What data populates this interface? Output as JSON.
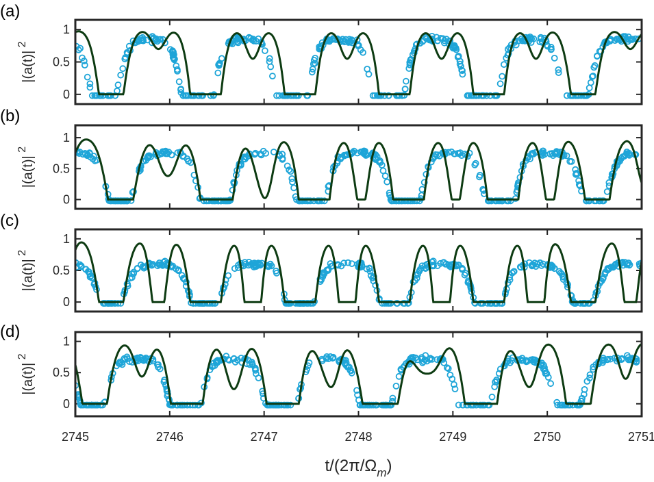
{
  "chart_data": [
    {
      "type": "scatter",
      "panel_label": "(a)",
      "ylabel": "|(a(t)|",
      "ylabel_sup": "2",
      "xlim": [
        2745,
        2751
      ],
      "ylim": [
        -0.15,
        1.15
      ],
      "yticks": [
        0,
        0.5,
        1
      ],
      "ytick_labels": [
        "0",
        "0.5",
        "1"
      ],
      "xticks": [
        2745,
        2746,
        2747,
        2748,
        2749,
        2750,
        2751
      ],
      "grid": false,
      "series": [
        {
          "kind": "markers",
          "marker": "circle-open",
          "color": "#1ea5d8"
        },
        {
          "kind": "line",
          "color": "#0d3b12"
        }
      ],
      "model": {
        "min_times": [
          2745.38,
          2746.38,
          2747.38,
          2748.38,
          2749.38,
          2750.38
        ],
        "mid_dip": 0.85
      },
      "data_points": {
        "dip_times": [
          2745.33,
          2746.28,
          2747.28,
          2748.33,
          2749.33,
          2750.28
        ],
        "dip_min": 0.08,
        "plateau": 0.85
      }
    },
    {
      "type": "scatter",
      "panel_label": "(b)",
      "ylabel": "|(a(t)|",
      "ylabel_sup": "2",
      "xlim": [
        2745,
        2751
      ],
      "ylim": [
        -0.15,
        1.2
      ],
      "yticks": [
        0,
        0.5,
        1
      ],
      "ytick_labels": [
        "0",
        "0.5",
        "1"
      ],
      "xticks": [
        2745,
        2746,
        2747,
        2748,
        2749,
        2750,
        2751
      ],
      "grid": false,
      "series": [
        {
          "kind": "markers",
          "marker": "circle-open",
          "color": "#1ea5d8"
        },
        {
          "kind": "line",
          "color": "#0d3b12"
        }
      ],
      "model": {
        "min_times": [
          2745.43,
          2746.53,
          2747.53,
          2748.53,
          2749.53,
          2750.53
        ],
        "mid_dip": 0.6
      },
      "data_points": {
        "dip_times": [
          2745.45,
          2746.5,
          2747.5,
          2748.5,
          2749.5,
          2750.5
        ],
        "dip_min": 0.15,
        "plateau": 0.75
      }
    },
    {
      "type": "scatter",
      "panel_label": "(c)",
      "ylabel": "|(a(t)|",
      "ylabel_sup": "2",
      "xlim": [
        2745,
        2751
      ],
      "ylim": [
        -0.15,
        1.15
      ],
      "yticks": [
        0,
        0.5,
        1
      ],
      "ytick_labels": [
        "0",
        "0.5",
        "1"
      ],
      "xticks": [
        2745,
        2746,
        2747,
        2748,
        2749,
        2750,
        2751
      ],
      "grid": false,
      "series": [
        {
          "kind": "markers",
          "marker": "circle-open",
          "color": "#1ea5d8"
        },
        {
          "kind": "line",
          "color": "#0d3b12"
        }
      ],
      "model": {
        "min_times": [
          2745.38,
          2746.38,
          2747.38,
          2748.38,
          2749.38,
          2750.38
        ],
        "mid_dip": 0.25
      },
      "data_points": {
        "dip_times": [
          2745.38,
          2746.38,
          2747.38,
          2748.38,
          2749.38,
          2750.38
        ],
        "dip_min": 0.15,
        "plateau": 0.6
      }
    },
    {
      "type": "scatter",
      "panel_label": "(d)",
      "ylabel": "|(a(t)|",
      "ylabel_sup": "2",
      "xlim": [
        2745,
        2751
      ],
      "ylim": [
        -0.2,
        1.15
      ],
      "yticks": [
        0,
        0.5,
        1
      ],
      "ytick_labels": [
        "0",
        "0.5",
        "1"
      ],
      "xticks": [
        2745,
        2746,
        2747,
        2748,
        2749,
        2750,
        2751
      ],
      "xtick_labels": [
        "2745",
        "2746",
        "2747",
        "2748",
        "2749",
        "2750",
        "2751"
      ],
      "xlabel": "t/(2π/Ω",
      "xlabel_sub": "m",
      "xlabel_end": ")",
      "grid": false,
      "series": [
        {
          "kind": "markers",
          "marker": "circle-open",
          "color": "#1ea5d8"
        },
        {
          "kind": "line",
          "color": "#0d3b12"
        }
      ],
      "model": {
        "min_times": [
          2745.18,
          2746.23,
          2747.13,
          2748.23,
          2749.33,
          2750.33
        ],
        "mid_dip": 0.7
      },
      "data_points": {
        "dip_times": [
          2745.18,
          2746.18,
          2747.13,
          2748.23,
          2749.18,
          2750.28
        ],
        "dip_min": 0.1,
        "plateau": 0.72
      }
    }
  ]
}
